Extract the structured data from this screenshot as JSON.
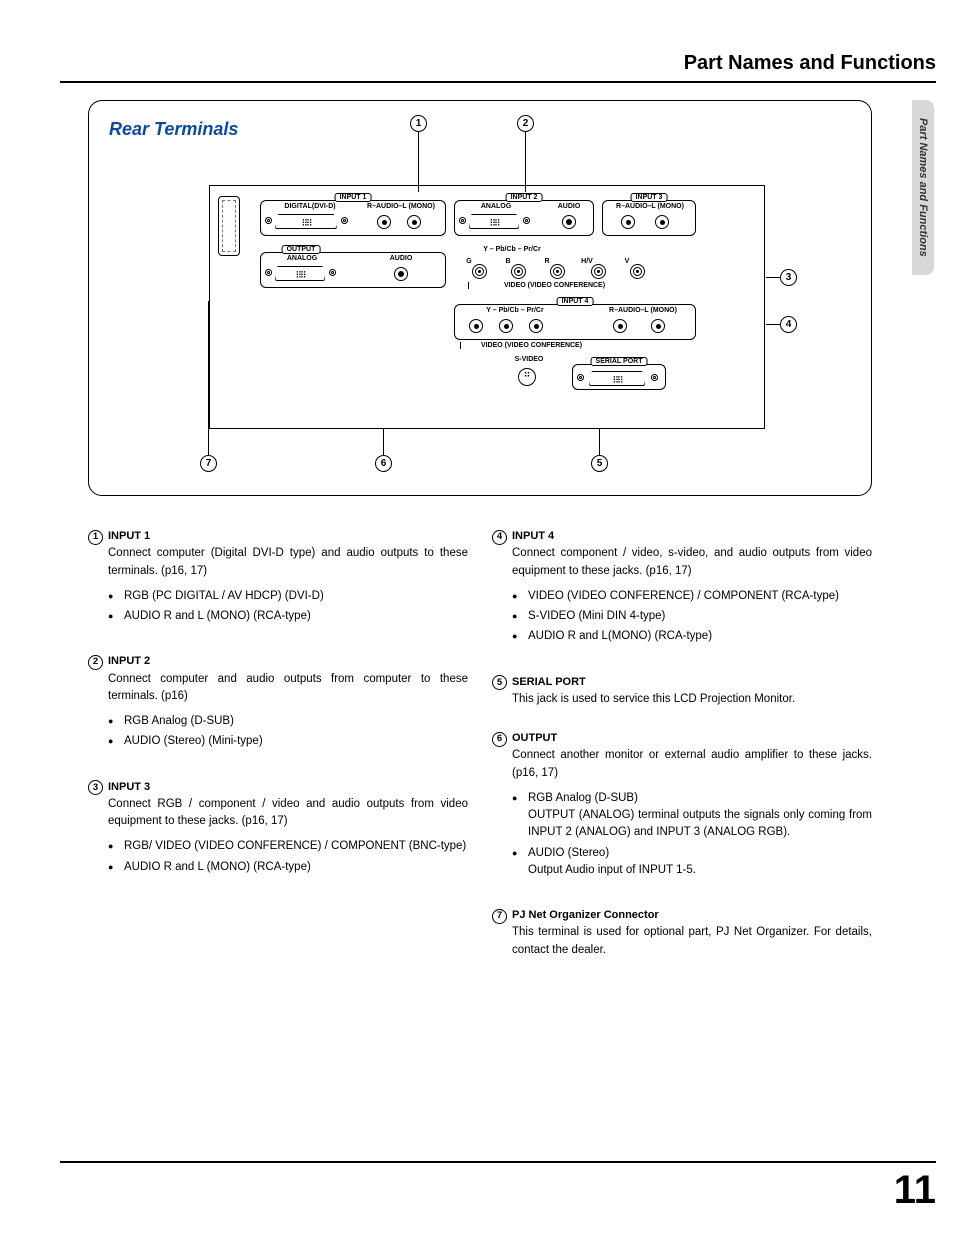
{
  "header": {
    "title": "Part Names and Functions"
  },
  "sideTab": "Part Names and Functions",
  "diagram": {
    "title": "Rear Terminals",
    "labels": {
      "input1": "INPUT 1",
      "input2": "INPUT 2",
      "input3": "INPUT 3",
      "input4": "INPUT 4",
      "output": "OUTPUT",
      "digitalDvi": "DIGITAL(DVI-D)",
      "analog": "ANALOG",
      "audio": "AUDIO",
      "rAudioLMono": "R–AUDIO–L (MONO)",
      "ypbpr": "Y – Pb/Cb – Pr/Cr",
      "g": "G",
      "b": "B",
      "r": "R",
      "hv": "H/V",
      "v": "V",
      "videoConf": "VIDEO (VIDEO CONFERENCE)",
      "sVideo": "S-VIDEO",
      "serialPort": "SERIAL PORT"
    }
  },
  "callouts": [
    "1",
    "2",
    "3",
    "4",
    "5",
    "6",
    "7"
  ],
  "descriptions": {
    "left": [
      {
        "num": "1",
        "title": "INPUT 1",
        "text": "Connect computer (Digital DVI-D type) and audio outputs to these terminals.  (p16, 17)",
        "bullets": [
          "RGB (PC DIGITAL / AV HDCP) (DVI-D)",
          "AUDIO R and L (MONO) (RCA-type)"
        ]
      },
      {
        "num": "2",
        "title": "INPUT 2",
        "text": "Connect computer and audio outputs from computer to these terminals.  (p16)",
        "bullets": [
          "RGB Analog (D-SUB)",
          "AUDIO (Stereo) (Mini-type)"
        ]
      },
      {
        "num": "3",
        "title": "INPUT 3",
        "text": "Connect RGB / component / video and audio outputs from video equipment to these jacks.  (p16, 17)",
        "bullets": [
          "RGB/ VIDEO (VIDEO CONFERENCE) / COMPONENT (BNC-type)",
          "AUDIO R and L (MONO) (RCA-type)"
        ]
      }
    ],
    "right": [
      {
        "num": "4",
        "title": "INPUT 4",
        "text": "Connect component / video, s-video, and audio outputs from video equipment to these jacks.  (p16, 17)",
        "bullets": [
          " VIDEO (VIDEO CONFERENCE) / COMPONENT (RCA-type)",
          "S-VIDEO (Mini DIN 4-type)",
          "AUDIO R and L(MONO) (RCA-type)"
        ]
      },
      {
        "num": "5",
        "title": "SERIAL PORT",
        "text": "This jack is used to service this LCD Projection Monitor.",
        "bullets": []
      },
      {
        "num": "6",
        "title": "OUTPUT",
        "text": "Connect another monitor or external audio amplifier to these jacks.  (p16, 17)",
        "bullets": [
          "RGB Analog (D-SUB)\nOUTPUT (ANALOG) terminal outputs the signals only coming from INPUT 2 (ANALOG) and INPUT 3 (ANALOG RGB).",
          "AUDIO (Stereo)\nOutput Audio input of INPUT 1-5."
        ]
      },
      {
        "num": "7",
        "title": "PJ Net Organizer Connector",
        "text": "This terminal is used for optional part, PJ Net Organizer.  For details, contact the dealer.",
        "bullets": []
      }
    ]
  },
  "pageNumber": "11"
}
